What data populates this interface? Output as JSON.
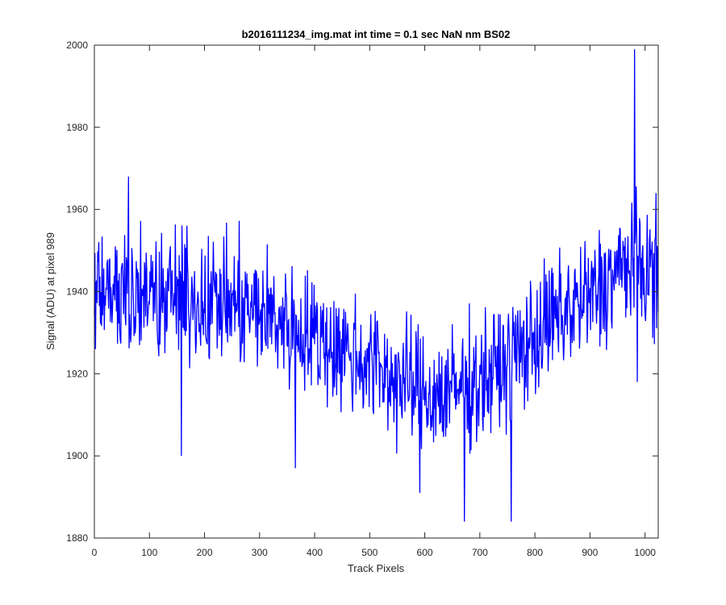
{
  "chart_data": {
    "type": "line",
    "title": "b2016111234_img.mat int time = 0.1 sec  NaN nm BS02",
    "xlabel": "Track Pixels",
    "ylabel": "Signal (ADU) at pixel 989",
    "xlim": [
      0,
      1024
    ],
    "ylim": [
      1880,
      2000
    ],
    "xticks": [
      "0",
      "100",
      "200",
      "300",
      "400",
      "500",
      "600",
      "700",
      "800",
      "900",
      "1000"
    ],
    "yticks": [
      "1880",
      "1900",
      "1920",
      "1940",
      "1960",
      "1980",
      "2000"
    ],
    "grid": false,
    "line_color": "#0000ff",
    "series": [
      {
        "x": [
          0,
          16,
          32,
          48,
          64,
          80,
          96,
          112,
          128,
          144,
          160,
          176,
          192,
          208,
          224,
          240,
          256,
          272,
          288,
          304,
          320,
          336,
          352,
          368,
          384,
          400,
          416,
          432,
          448,
          464,
          480,
          496,
          512,
          528,
          544,
          560,
          576,
          592,
          608,
          624,
          640,
          656,
          672,
          688,
          704,
          720,
          736,
          752,
          768,
          784,
          800,
          816,
          832,
          848,
          864,
          880,
          896,
          912,
          928,
          944,
          960,
          976,
          992,
          1008,
          1023
        ],
        "values": [
          1939,
          1941,
          1940,
          1941,
          1941,
          1940,
          1940,
          1939,
          1939,
          1939,
          1939,
          1938,
          1938,
          1938,
          1938,
          1937,
          1937,
          1936,
          1935,
          1935,
          1934,
          1933,
          1932,
          1931,
          1930,
          1929,
          1928,
          1927,
          1926,
          1925,
          1924,
          1923,
          1922,
          1920,
          1919,
          1918,
          1917,
          1916,
          1915,
          1915,
          1915,
          1916,
          1917,
          1918,
          1919,
          1920,
          1921,
          1923,
          1925,
          1927,
          1929,
          1931,
          1933,
          1934,
          1936,
          1937,
          1938,
          1940,
          1942,
          1944,
          1946,
          1947,
          1946,
          1945,
          1944
        ],
        "spikes": [
          {
            "x": 62,
            "value": 1968
          },
          {
            "x": 158,
            "value": 1900
          },
          {
            "x": 365,
            "value": 1897
          },
          {
            "x": 591,
            "value": 1891
          },
          {
            "x": 672,
            "value": 1884
          },
          {
            "x": 757,
            "value": 1884
          },
          {
            "x": 981,
            "value": 1999
          },
          {
            "x": 986,
            "value": 1918
          }
        ]
      }
    ]
  }
}
